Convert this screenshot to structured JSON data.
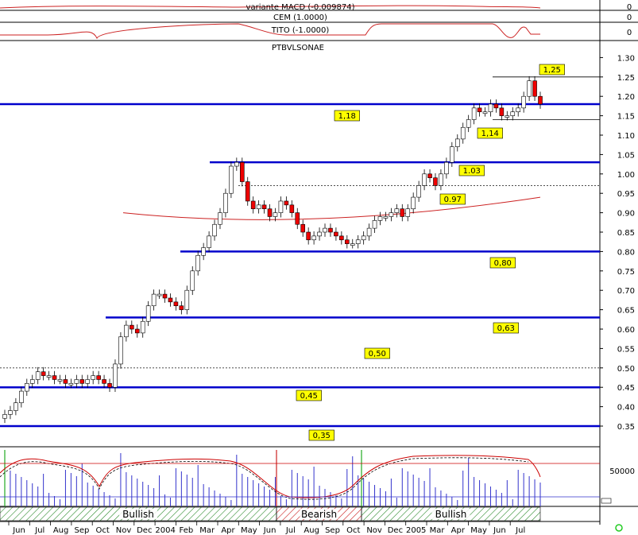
{
  "chart_data": {
    "type": "candlestick",
    "title": "PTBVLSONAE",
    "indicators": [
      {
        "label": "variante MACD (-0.009874)",
        "value": "0"
      },
      {
        "label": "CEM (1.0000)",
        "value": "0"
      },
      {
        "label": "TITO (-1.0000)",
        "value": "0"
      }
    ],
    "ylim": [
      0.33,
      1.33
    ],
    "yticks": [
      0.35,
      0.4,
      0.45,
      0.5,
      0.55,
      0.6,
      0.65,
      0.7,
      0.75,
      0.8,
      0.85,
      0.9,
      0.95,
      1.0,
      1.05,
      1.1,
      1.15,
      1.2,
      1.25,
      1.3
    ],
    "levels": [
      {
        "value": 1.18,
        "label": "1,18",
        "style": "thick"
      },
      {
        "value": 1.03,
        "label": "1.03",
        "style": "thick"
      },
      {
        "value": 0.8,
        "label": "0,80",
        "style": "thick"
      },
      {
        "value": 0.63,
        "label": "0,63",
        "style": "thick"
      },
      {
        "value": 0.45,
        "label": "0,45",
        "style": "thick"
      },
      {
        "value": 0.35,
        "label": "0,35",
        "style": "thick"
      },
      {
        "value": 1.25,
        "label": "1,25",
        "style": "thin"
      },
      {
        "value": 1.14,
        "label": "1,14",
        "style": "thin"
      },
      {
        "value": 0.97,
        "label": "0.97",
        "style": "dotted"
      },
      {
        "value": 0.5,
        "label": "0,50",
        "style": "dotted"
      }
    ],
    "x_labels": [
      "Jun",
      "Jul",
      "Aug",
      "Sep",
      "Oct",
      "Nov",
      "Dec",
      "2004",
      "Feb",
      "Mar",
      "Apr",
      "May",
      "Jun",
      "Jul",
      "Aug",
      "Sep",
      "Oct",
      "Nov",
      "Dec",
      "2005",
      "Mar",
      "Apr",
      "May",
      "Jun",
      "Jul"
    ],
    "close": [
      0.38,
      0.39,
      0.41,
      0.44,
      0.46,
      0.47,
      0.49,
      0.48,
      0.48,
      0.47,
      0.47,
      0.46,
      0.46,
      0.47,
      0.46,
      0.47,
      0.48,
      0.47,
      0.46,
      0.45,
      0.51,
      0.58,
      0.61,
      0.6,
      0.59,
      0.62,
      0.66,
      0.69,
      0.69,
      0.68,
      0.67,
      0.66,
      0.65,
      0.7,
      0.75,
      0.79,
      0.81,
      0.84,
      0.87,
      0.9,
      0.95,
      1.02,
      1.03,
      0.98,
      0.93,
      0.91,
      0.92,
      0.91,
      0.89,
      0.9,
      0.93,
      0.92,
      0.9,
      0.87,
      0.85,
      0.83,
      0.84,
      0.85,
      0.86,
      0.85,
      0.84,
      0.83,
      0.82,
      0.82,
      0.83,
      0.84,
      0.86,
      0.88,
      0.89,
      0.89,
      0.9,
      0.91,
      0.89,
      0.91,
      0.94,
      0.97,
      1.0,
      0.99,
      0.97,
      1.0,
      1.03,
      1.07,
      1.09,
      1.12,
      1.14,
      1.17,
      1.16,
      1.16,
      1.18,
      1.17,
      1.15,
      1.15,
      1.16,
      1.17,
      1.2,
      1.24,
      1.2,
      1.18
    ],
    "moving_average": {
      "from": 0.9,
      "min": 0.88,
      "to": 0.94
    },
    "sentiment_bands": [
      {
        "label": "Bullish",
        "from_month": "Jun",
        "to_month": "May"
      },
      {
        "label": "Bearish",
        "from_month": "May",
        "to_month": "Sep"
      },
      {
        "label": "Bullish",
        "from_month": "Sep",
        "to_month": "May"
      }
    ],
    "volume_label": "50000"
  },
  "colors": {
    "level_line": "#0000cc",
    "up": "#ffffff",
    "down": "#ee0000",
    "label_bg": "#ffff00",
    "ma": "#cc2222",
    "volume": "#3333cc",
    "bull_hatch": "#2a8a2a",
    "bear_hatch": "#cc2222",
    "status_ring": "#22cc22"
  }
}
